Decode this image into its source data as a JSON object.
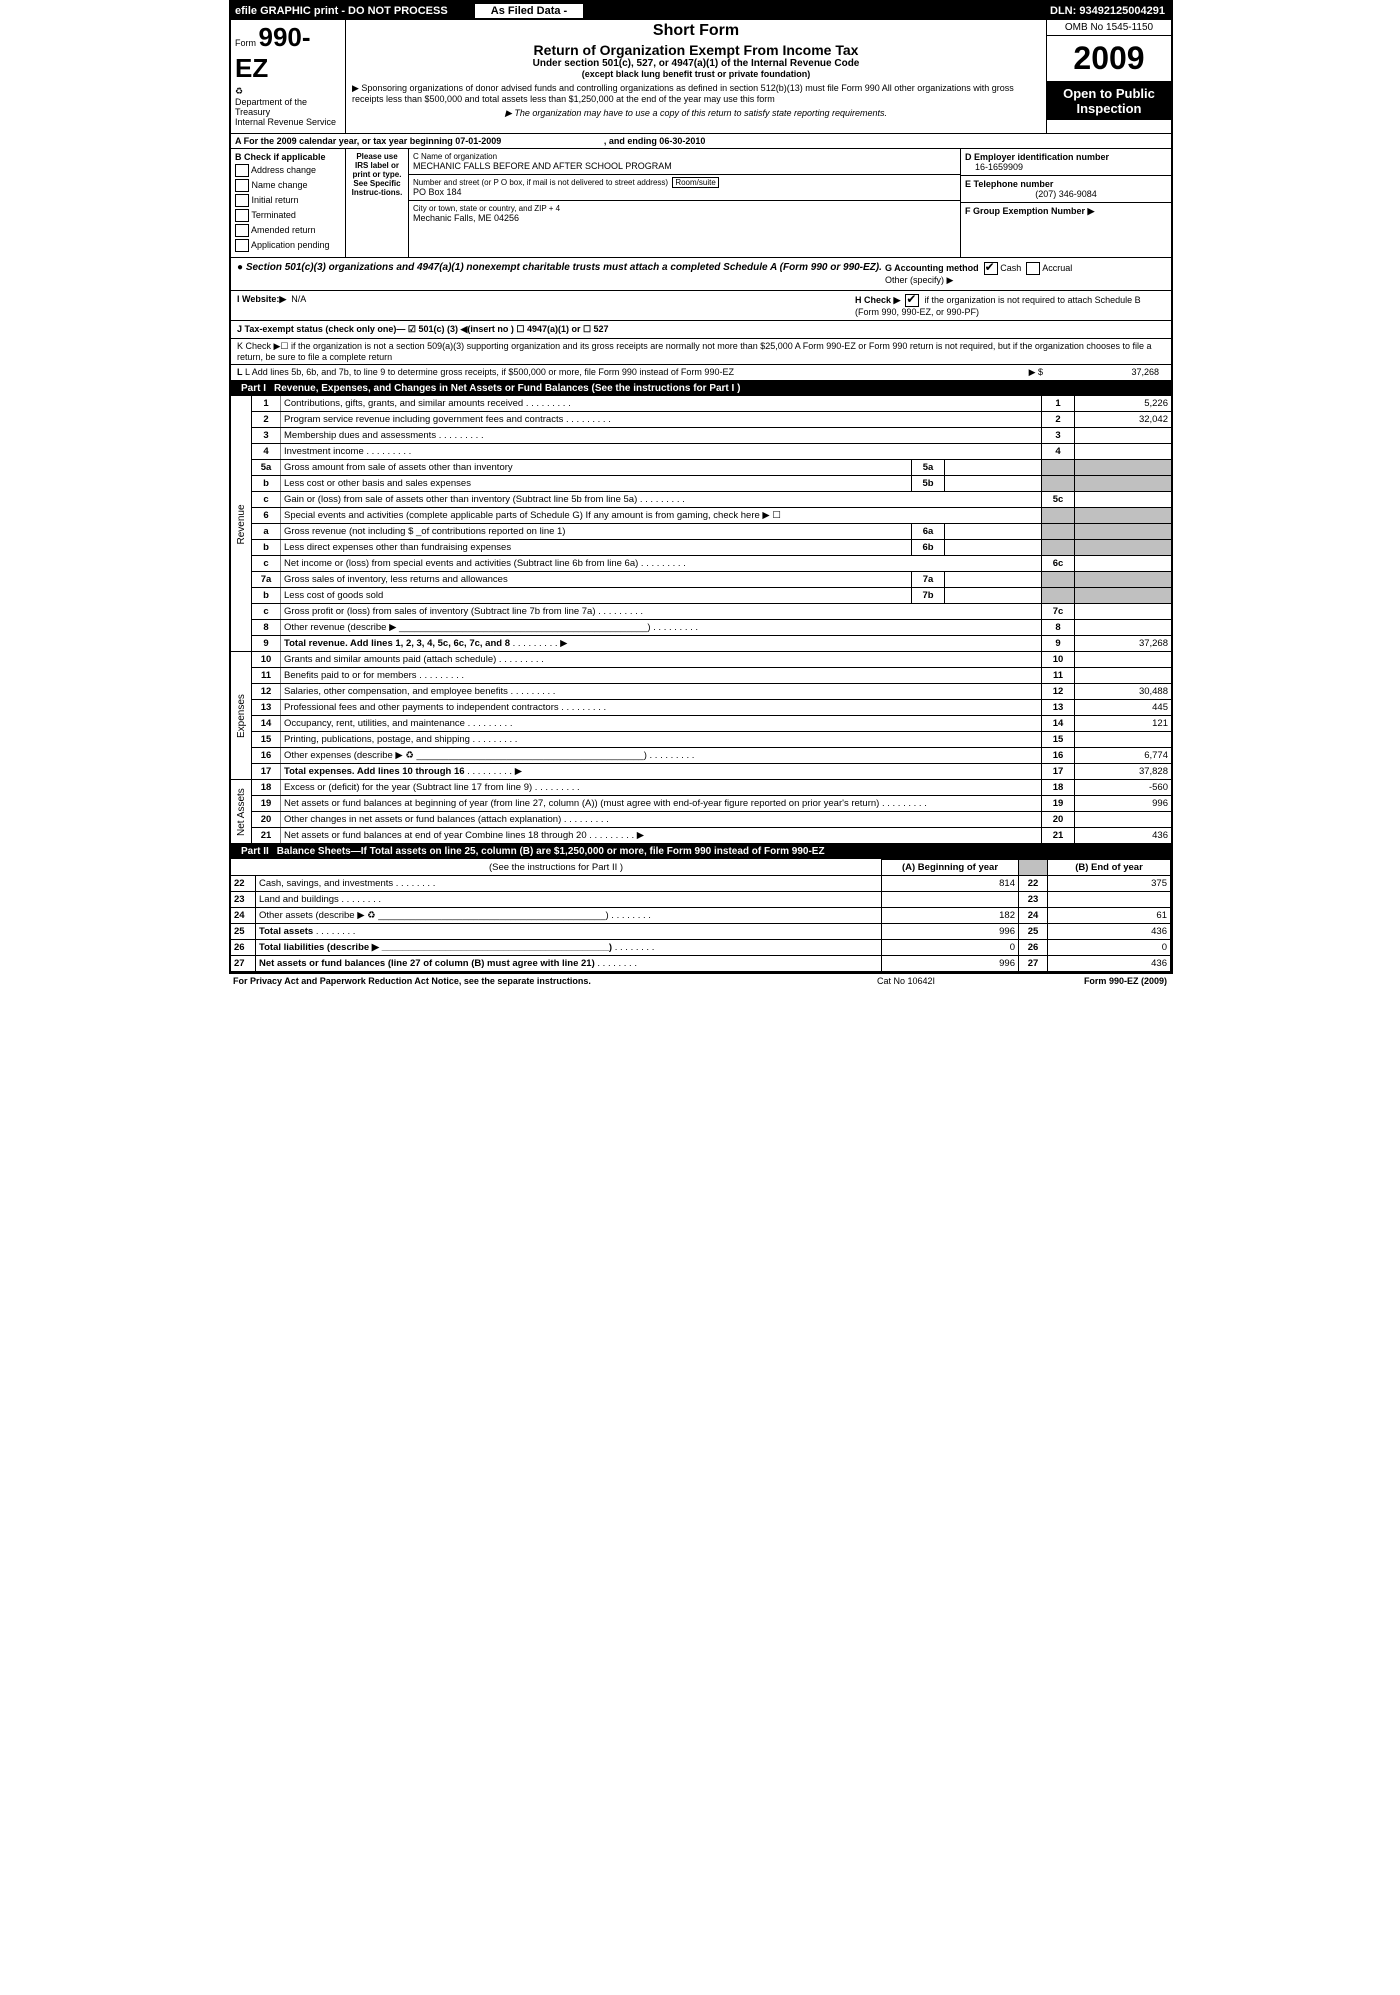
{
  "topBar": {
    "left": "efile GRAPHIC print - DO NOT PROCESS",
    "mid": "As Filed Data -",
    "right": "DLN: 93492125004291"
  },
  "headerLeft": {
    "formPrefix": "Form",
    "formNumber": "990-EZ",
    "dept": "Department of the Treasury",
    "irs": "Internal Revenue Service"
  },
  "headerCenter": {
    "shortForm": "Short Form",
    "title": "Return of Organization Exempt From Income Tax",
    "sub1": "Under section 501(c), 527, or 4947(a)(1) of the Internal Revenue Code",
    "sub2": "(except black lung benefit trust or private foundation)",
    "note": "▶ Sponsoring organizations of donor advised funds and controlling organizations as defined in section 512(b)(13) must file Form 990  All other organizations with gross receipts less than $500,000 and total assets less than $1,250,000 at the end of the year may use this form",
    "note2": "▶ The organization may have to use a copy of this return to satisfy state reporting requirements."
  },
  "headerRight": {
    "omb": "OMB No  1545-1150",
    "year": "2009",
    "open": "Open to Public Inspection"
  },
  "sectionA": {
    "text": "A   For the 2009 calendar year, or tax year beginning 07-01-2009",
    "ending": ", and ending 06-30-2010"
  },
  "boxB": {
    "header": "B  Check if applicable",
    "items": [
      "Address change",
      "Name change",
      "Initial return",
      "Terminated",
      "Amended return",
      "Application pending"
    ]
  },
  "boxPlease": "Please use IRS label or print or type. See Specific Instruc-tions.",
  "boxC": {
    "labelC": "C Name of organization",
    "name": "MECHANIC FALLS BEFORE AND AFTER SCHOOL PROGRAM",
    "labelAddr": "Number and street (or P O  box, if mail is not delivered to street address)",
    "room": "Room/suite",
    "addr": "PO Box 184",
    "labelCity": "City or town, state or country, and ZIP + 4",
    "city": "Mechanic Falls, ME  04256"
  },
  "boxD": {
    "label": "D Employer identification number",
    "val": "16-1659909"
  },
  "boxE": {
    "label": "E Telephone number",
    "val": "(207) 346-9084"
  },
  "boxF": {
    "label": "F Group Exemption Number  ▶"
  },
  "boxG": {
    "label": "G Accounting method",
    "cash": "Cash",
    "accrual": "Accrual",
    "other": "Other (specify) ▶"
  },
  "sec501": "● Section 501(c)(3) organizations and 4947(a)(1) nonexempt charitable trusts must attach a completed Schedule A (Form 990 or 990-EZ).",
  "rowI": {
    "label": "I Website:▶",
    "val": "N/A"
  },
  "rowH": {
    "label": "H   Check ▶",
    "text": "if the organization is not required to attach Schedule B (Form 990, 990-EZ, or 990-PF)"
  },
  "rowJ": "J Tax-exempt status (check only one)— ☑ 501(c) (3) ◀(insert no ) ☐ 4947(a)(1) or ☐  527",
  "rowK": "K Check ▶☐  if the organization is not a section 509(a)(3) supporting organization and its gross receipts are normally not more than $25,000  A Form 990-EZ or Form 990 return is not required, but if the organization chooses to file a return, be sure to file a complete return",
  "rowL": {
    "text": "L Add lines 5b, 6b, and 7b, to line 9 to determine gross receipts, if $500,000 or more, file Form 990 instead of Form 990-EZ",
    "arrow": "▶ $",
    "amount": "37,268"
  },
  "partI": {
    "tag": "Part I",
    "title": "Revenue, Expenses, and Changes in Net Assets or Fund Balances (See the instructions for Part I )",
    "rows": [
      {
        "n": "1",
        "d": "Contributions, gifts, grants, and similar amounts received",
        "ln": "1",
        "amt": "5,226"
      },
      {
        "n": "2",
        "d": "Program service revenue including government fees and contracts",
        "ln": "2",
        "amt": "32,042"
      },
      {
        "n": "3",
        "d": "Membership dues and assessments",
        "ln": "3",
        "amt": ""
      },
      {
        "n": "4",
        "d": "Investment income",
        "ln": "4",
        "amt": ""
      },
      {
        "n": "5a",
        "d": "Gross amount from sale of assets other than inventory",
        "sub": "5a",
        "subval": ""
      },
      {
        "n": "b",
        "d": "Less  cost or other basis and sales expenses",
        "sub": "5b",
        "subval": ""
      },
      {
        "n": "c",
        "d": "Gain or (loss) from sale of assets other than inventory (Subtract line 5b from line 5a)",
        "ln": "5c",
        "amt": ""
      },
      {
        "n": "6",
        "d": "Special events and activities (complete applicable parts of Schedule G)  If any amount is from gaming, check here ▶  ☐"
      },
      {
        "n": "a",
        "d": "Gross revenue (not including $ _of contributions reported on line 1)",
        "sub": "6a",
        "subval": ""
      },
      {
        "n": "b",
        "d": "Less  direct expenses other than fundraising expenses",
        "sub": "6b",
        "subval": ""
      },
      {
        "n": "c",
        "d": "Net income or (loss) from special events and activities (Subtract line 6b from line 6a)",
        "ln": "6c",
        "amt": ""
      },
      {
        "n": "7a",
        "d": "Gross sales of inventory, less returns and allowances",
        "sub": "7a",
        "subval": ""
      },
      {
        "n": "b",
        "d": "Less  cost of goods sold",
        "sub": "7b",
        "subval": ""
      },
      {
        "n": "c",
        "d": "Gross profit or (loss) from sales of inventory (Subtract line 7b from line 7a)",
        "ln": "7c",
        "amt": ""
      },
      {
        "n": "8",
        "d": "Other revenue (describe ▶ _______________________________________________)",
        "ln": "8",
        "amt": ""
      },
      {
        "n": "9",
        "d": "Total revenue. Add lines 1, 2, 3, 4, 5c, 6c, 7c, and 8",
        "arrow": 1,
        "ln": "9",
        "amt": "37,268",
        "bold": 1
      }
    ],
    "expenses": [
      {
        "n": "10",
        "d": "Grants and similar amounts paid (attach schedule)",
        "ln": "10",
        "amt": ""
      },
      {
        "n": "11",
        "d": "Benefits paid to or for members",
        "ln": "11",
        "amt": ""
      },
      {
        "n": "12",
        "d": "Salaries, other compensation, and employee benefits",
        "ln": "12",
        "amt": "30,488"
      },
      {
        "n": "13",
        "d": "Professional fees and other payments to independent contractors",
        "ln": "13",
        "amt": "445"
      },
      {
        "n": "14",
        "d": "Occupancy, rent, utilities, and maintenance",
        "ln": "14",
        "amt": "121"
      },
      {
        "n": "15",
        "d": "Printing, publications, postage, and shipping",
        "ln": "15",
        "amt": ""
      },
      {
        "n": "16",
        "d": "Other expenses (describe ▶ ♻ ___________________________________________)",
        "ln": "16",
        "amt": "6,774"
      },
      {
        "n": "17",
        "d": "Total expenses. Add lines 10 through 16",
        "arrow": 1,
        "ln": "17",
        "amt": "37,828",
        "bold": 1
      }
    ],
    "netassets": [
      {
        "n": "18",
        "d": "Excess or (deficit) for the year (Subtract line 17 from line 9)",
        "ln": "18",
        "amt": "-560"
      },
      {
        "n": "19",
        "d": "Net assets or fund balances at beginning of year (from line 27, column (A)) (must agree with end-of-year figure reported on prior year's return)",
        "ln": "19",
        "amt": "996"
      },
      {
        "n": "20",
        "d": "Other changes in net assets or fund balances (attach explanation)",
        "ln": "20",
        "amt": ""
      },
      {
        "n": "21",
        "d": "Net assets or fund balances at end of year  Combine lines 18 through 20",
        "arrow": 1,
        "ln": "21",
        "amt": "436"
      }
    ]
  },
  "partII": {
    "tag": "Part II",
    "title": "Balance Sheets—If Total assets on line 25, column (B) are $1,250,000 or more, file Form 990 instead of Form 990-EZ",
    "hdrNote": "(See the instructions for Part II )",
    "colA": "(A) Beginning of year",
    "colB": "(B) End of year",
    "rows": [
      {
        "n": "22",
        "d": "Cash, savings, and investments",
        "a": "814",
        "ln": "22",
        "b": "375"
      },
      {
        "n": "23",
        "d": "Land and buildings",
        "a": "",
        "ln": "23",
        "b": ""
      },
      {
        "n": "24",
        "d": "Other assets (describe ▶ ♻ ___________________________________________)",
        "a": "182",
        "ln": "24",
        "b": "61"
      },
      {
        "n": "25",
        "d": "Total assets",
        "a": "996",
        "ln": "25",
        "b": "436",
        "bold": 1
      },
      {
        "n": "26",
        "d": "Total liabilities (describe ▶ ___________________________________________)",
        "a": "0",
        "ln": "26",
        "b": "0",
        "bold": 1
      },
      {
        "n": "27",
        "d": "Net assets or fund balances (line 27 of column (B) must agree with line 21)",
        "a": "996",
        "ln": "27",
        "b": "436",
        "bold": 1
      }
    ]
  },
  "footer": {
    "left": "For Privacy Act and Paperwork Reduction Act Notice, see the separate instructions.",
    "mid": "Cat No  10642I",
    "right": "Form 990-EZ (2009)"
  }
}
